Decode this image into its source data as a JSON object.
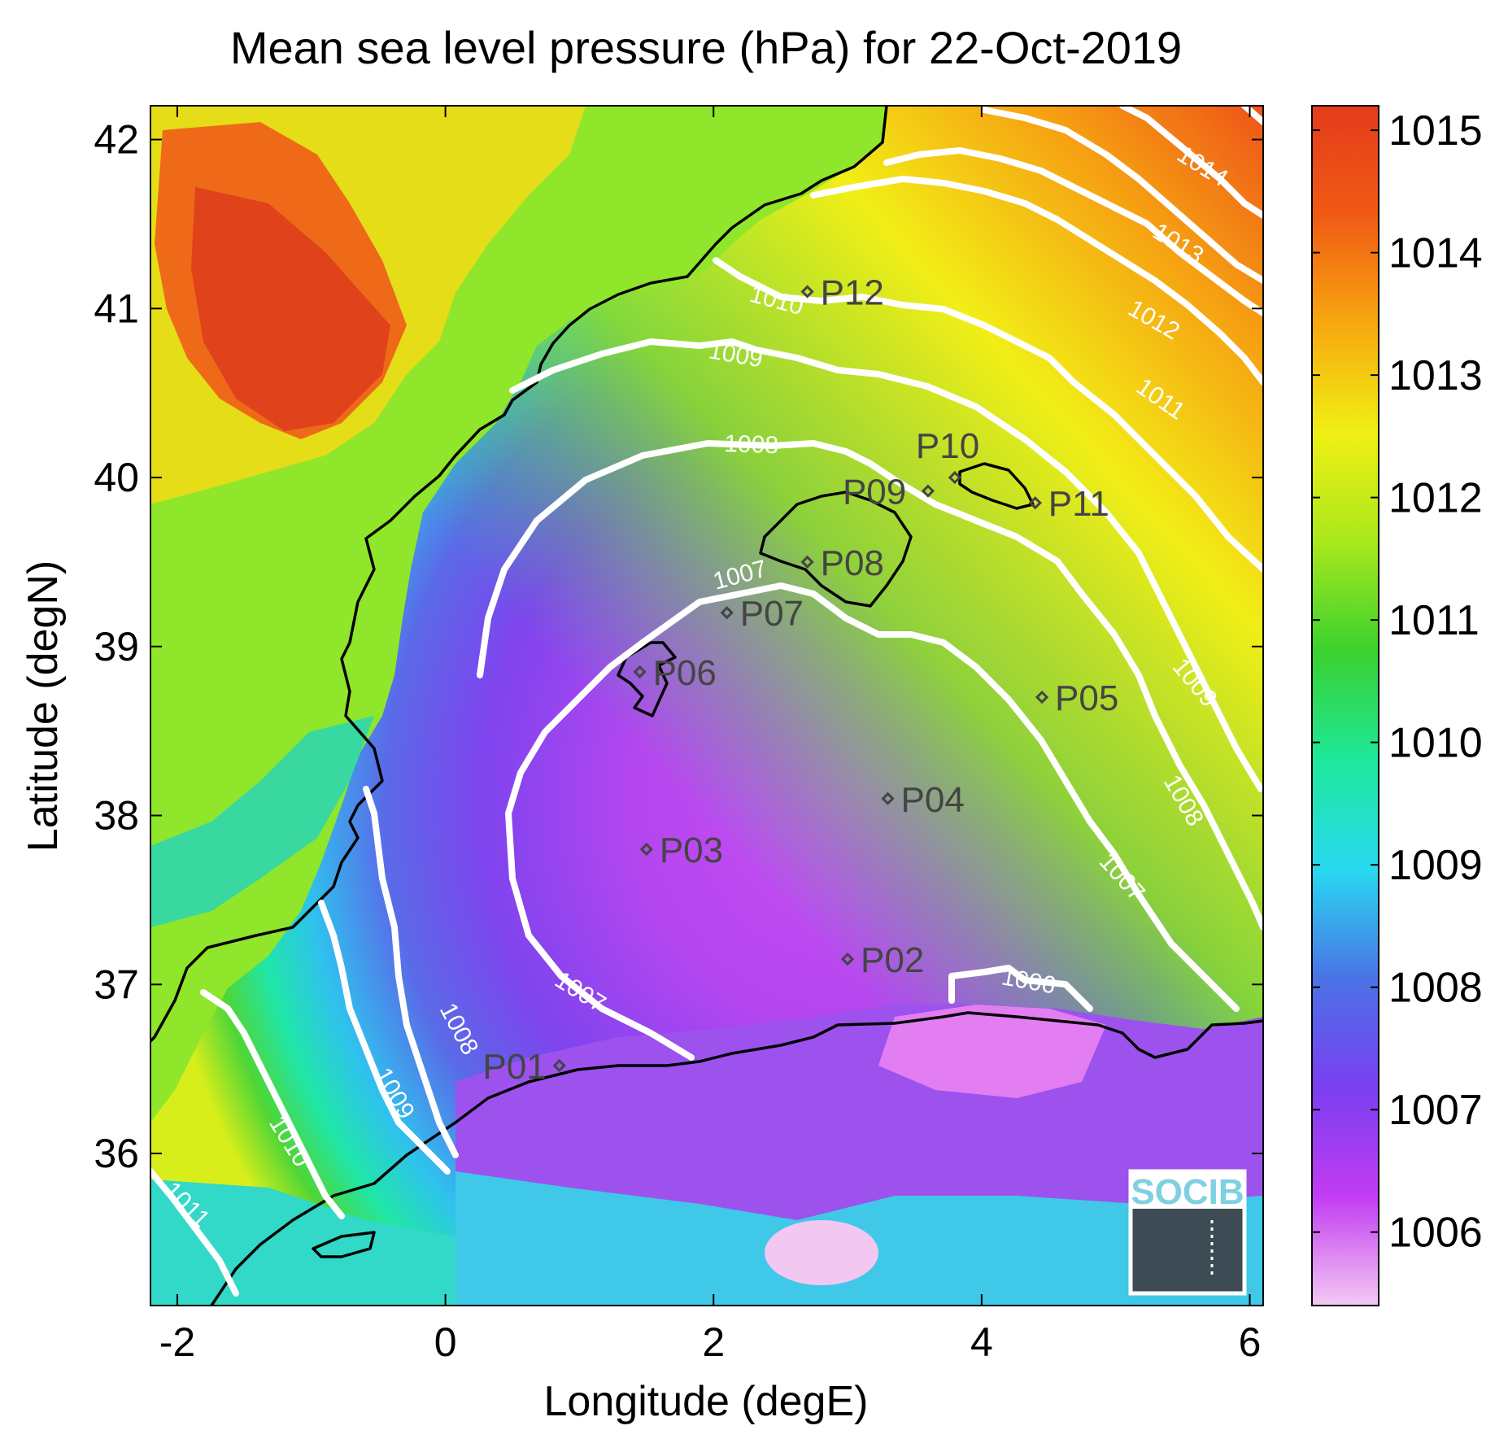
{
  "title": "Mean sea level pressure (hPa) for 22-Oct-2019",
  "xlabel": "Longitude (degE)",
  "ylabel": "Latitude (degN)",
  "logo": "SOCIB",
  "map_data": {
    "xlim": [
      -2.2,
      6.1
    ],
    "ylim": [
      35.1,
      42.2
    ],
    "xticks": [
      "-2",
      "0",
      "2",
      "4",
      "6"
    ],
    "yticks": [
      "36",
      "37",
      "38",
      "39",
      "40",
      "41",
      "42"
    ],
    "xtick_values": [
      -2,
      0,
      2,
      4,
      6
    ],
    "ytick_values": [
      36,
      37,
      38,
      39,
      40,
      41,
      42
    ],
    "colorbar": {
      "range": [
        1005.4,
        1015.2
      ],
      "ticks": [
        "1006",
        "1007",
        "1008",
        "1009",
        "1010",
        "1011",
        "1012",
        "1013",
        "1014",
        "1015"
      ],
      "tick_values": [
        1006,
        1007,
        1008,
        1009,
        1010,
        1011,
        1012,
        1013,
        1014,
        1015
      ],
      "colormap": [
        "#f3c9f3",
        "#c23cf3",
        "#7a3ff0",
        "#4a73e6",
        "#28d9f0",
        "#1ee89a",
        "#3ad12e",
        "#a8e81c",
        "#f0f014",
        "#f7a810",
        "#f05a14",
        "#e43c1c"
      ]
    },
    "stations": [
      {
        "label": "P01",
        "lon": 0.85,
        "lat": 36.52
      },
      {
        "label": "P02",
        "lon": 3.0,
        "lat": 37.15
      },
      {
        "label": "P03",
        "lon": 1.5,
        "lat": 37.8
      },
      {
        "label": "P04",
        "lon": 3.3,
        "lat": 38.1
      },
      {
        "label": "P05",
        "lon": 4.45,
        "lat": 38.7
      },
      {
        "label": "P06",
        "lon": 1.45,
        "lat": 38.85
      },
      {
        "label": "P07",
        "lon": 2.1,
        "lat": 39.2
      },
      {
        "label": "P08",
        "lon": 2.7,
        "lat": 39.5
      },
      {
        "label": "P09",
        "lon": 3.6,
        "lat": 39.92
      },
      {
        "label": "P10",
        "lon": 3.8,
        "lat": 40.0
      },
      {
        "label": "P11",
        "lon": 4.4,
        "lat": 39.85
      },
      {
        "label": "P12",
        "lon": 2.7,
        "lat": 41.1
      }
    ],
    "contour_labels": [
      "1006",
      "1007",
      "1007",
      "1007",
      "1008",
      "1008",
      "1008",
      "1009",
      "1009",
      "1009",
      "1010",
      "1010",
      "1011",
      "1011",
      "1012",
      "1013",
      "1014"
    ],
    "colors": {
      "contour": "#ffffff",
      "coast": "#000000",
      "station": "#444444"
    }
  }
}
